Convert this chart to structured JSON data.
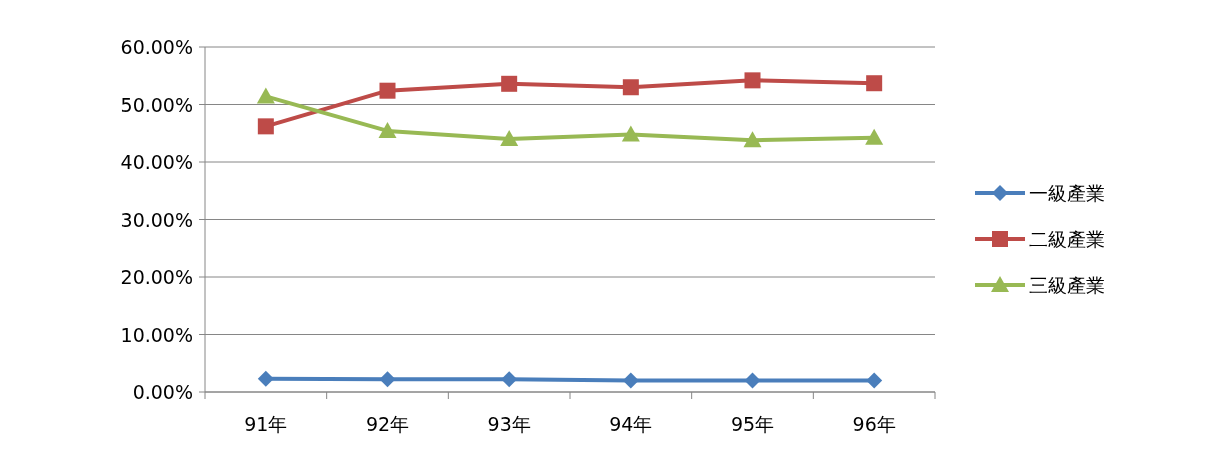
{
  "chart_data": {
    "type": "line",
    "categories": [
      "91年",
      "92年",
      "93年",
      "94年",
      "95年",
      "96年"
    ],
    "series": [
      {
        "name": "一級產業",
        "color": "#4a7ebb",
        "marker": "diamond",
        "values": [
          2.3,
          2.2,
          2.2,
          2.0,
          2.0,
          2.0
        ]
      },
      {
        "name": "二級產業",
        "color": "#be4b48",
        "marker": "square",
        "values": [
          46.2,
          52.4,
          53.6,
          53.0,
          54.2,
          53.7
        ]
      },
      {
        "name": "三級產業",
        "color": "#98b954",
        "marker": "triangle",
        "values": [
          51.4,
          45.4,
          44.0,
          44.8,
          43.8,
          44.2
        ]
      }
    ],
    "ylim": [
      0,
      60
    ],
    "yticks": [
      {
        "value": 0,
        "label": "0.00%"
      },
      {
        "value": 10,
        "label": "10.00%"
      },
      {
        "value": 20,
        "label": "20.00%"
      },
      {
        "value": 30,
        "label": "30.00%"
      },
      {
        "value": 40,
        "label": "40.00%"
      },
      {
        "value": 50,
        "label": "50.00%"
      },
      {
        "value": 60,
        "label": "60.00%"
      }
    ],
    "grid": "y",
    "legend": "right",
    "line_style": "solid"
  }
}
